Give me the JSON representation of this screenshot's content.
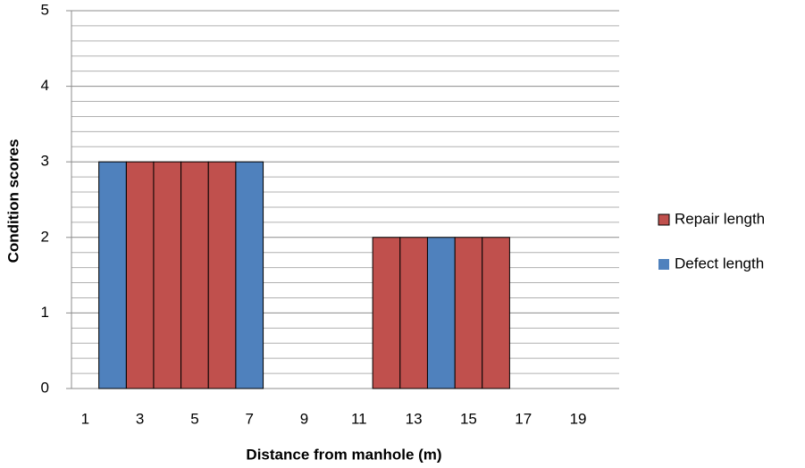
{
  "chart_data": {
    "type": "bar",
    "x_label": "Distance from manhole (m)",
    "y_label": "Condition scores",
    "categories": [
      "1",
      null,
      "3",
      null,
      "5",
      null,
      "7",
      null,
      "9",
      null,
      "11",
      null,
      "13",
      null,
      "15",
      null,
      "17",
      null,
      "19",
      null
    ],
    "series": [
      {
        "name": "Repair length",
        "color": "#c0504d",
        "values": [
          null,
          null,
          3,
          3,
          3,
          3,
          null,
          null,
          null,
          null,
          null,
          2,
          2,
          null,
          2,
          2,
          null,
          null,
          null,
          null
        ]
      },
      {
        "name": "Defect length",
        "color": "#4f81bd",
        "values": [
          null,
          3,
          null,
          null,
          null,
          null,
          3,
          null,
          null,
          null,
          null,
          null,
          null,
          2,
          null,
          null,
          null,
          null,
          null,
          null
        ]
      }
    ],
    "ylim": [
      0,
      5
    ],
    "yticks": [
      0,
      1,
      2,
      3,
      4,
      5
    ],
    "minor_yticks": [
      0.2,
      0.4,
      0.6,
      0.8,
      1.2,
      1.4,
      1.6,
      1.8,
      2.2,
      2.4,
      2.6,
      2.8,
      3.2,
      3.4,
      3.6,
      3.8,
      4.2,
      4.4,
      4.6,
      4.8
    ],
    "grid": true,
    "legend": "right"
  }
}
